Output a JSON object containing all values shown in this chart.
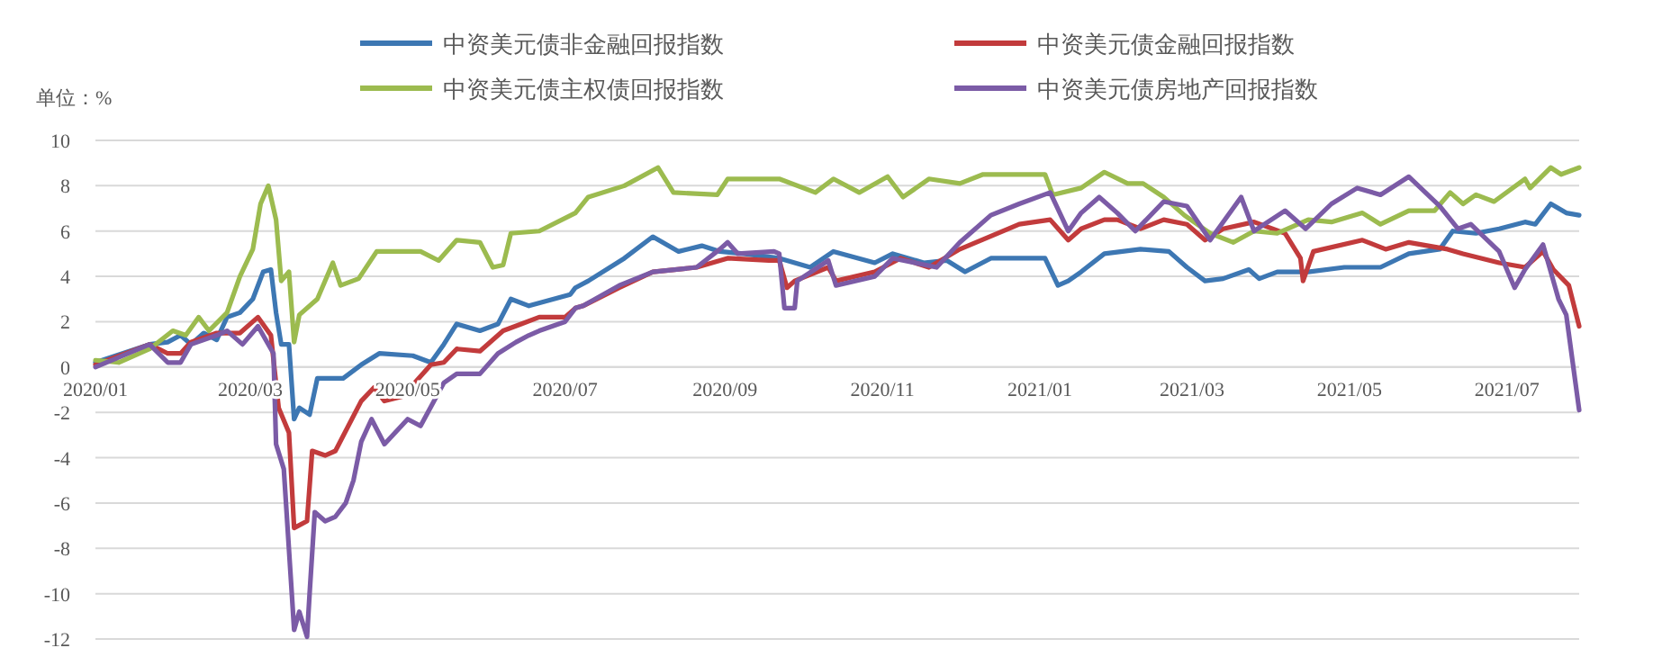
{
  "chart_data": {
    "type": "line",
    "ylabel": "单位：%",
    "legend": "top",
    "grid": "y",
    "xlim": [
      "2020-01-01",
      "2021-07-29"
    ],
    "xticks": [
      {
        "value": "2020-01-01",
        "label": "2020/01"
      },
      {
        "value": "2020-03-01",
        "label": "2020/03"
      },
      {
        "value": "2020-05-01",
        "label": "2020/05"
      },
      {
        "value": "2020-07-01",
        "label": "2020/07"
      },
      {
        "value": "2020-09-01",
        "label": "2020/09"
      },
      {
        "value": "2020-11-01",
        "label": "2020/11"
      },
      {
        "value": "2021-01-01",
        "label": "2021/01"
      },
      {
        "value": "2021-03-01",
        "label": "2021/03"
      },
      {
        "value": "2021-05-01",
        "label": "2021/05"
      },
      {
        "value": "2021-07-01",
        "label": "2021/07"
      }
    ],
    "ylim": [
      -12,
      10
    ],
    "yticks": [
      -12,
      -10,
      -8,
      -6,
      -4,
      -2,
      0,
      2,
      4,
      6,
      8,
      10
    ],
    "series": [
      {
        "name": "中资美元债非金融回报指数",
        "color": "#3d77b3",
        "x": [
          "2020-01-01",
          "2020-01-22",
          "2020-01-29",
          "2020-02-03",
          "2020-02-07",
          "2020-02-12",
          "2020-02-17",
          "2020-02-21",
          "2020-02-26",
          "2020-03-02",
          "2020-03-06",
          "2020-03-09",
          "2020-03-11",
          "2020-03-13",
          "2020-03-16",
          "2020-03-18",
          "2020-03-20",
          "2020-03-24",
          "2020-03-27",
          "2020-04-06",
          "2020-04-13",
          "2020-04-20",
          "2020-05-03",
          "2020-05-10",
          "2020-05-15",
          "2020-05-20",
          "2020-05-29",
          "2020-06-05",
          "2020-06-10",
          "2020-06-17",
          "2020-07-03",
          "2020-07-05",
          "2020-07-10",
          "2020-07-24",
          "2020-08-04",
          "2020-08-14",
          "2020-08-23",
          "2020-08-30",
          "2020-09-08",
          "2020-09-22",
          "2020-10-04",
          "2020-10-13",
          "2020-10-29",
          "2020-11-05",
          "2020-11-17",
          "2020-11-26",
          "2020-12-03",
          "2020-12-13",
          "2021-01-03",
          "2021-01-08",
          "2021-01-12",
          "2021-01-17",
          "2021-01-26",
          "2021-02-09",
          "2021-02-20",
          "2021-02-27",
          "2021-03-06",
          "2021-03-13",
          "2021-03-23",
          "2021-03-27",
          "2021-04-03",
          "2021-04-15",
          "2021-04-29",
          "2021-05-13",
          "2021-05-24",
          "2021-06-05",
          "2021-06-10",
          "2021-06-19",
          "2021-06-28",
          "2021-07-08",
          "2021-07-12",
          "2021-07-18",
          "2021-07-24",
          "2021-07-29"
        ],
        "values": [
          0.2,
          1.0,
          1.1,
          1.4,
          1.0,
          1.5,
          1.2,
          2.2,
          2.4,
          3.0,
          4.2,
          4.3,
          2.4,
          1.0,
          1.0,
          -2.3,
          -1.8,
          -2.1,
          -0.5,
          -0.5,
          0.1,
          0.6,
          0.5,
          0.2,
          1.0,
          1.9,
          1.6,
          1.9,
          3.0,
          2.7,
          3.2,
          3.5,
          3.8,
          4.8,
          5.75,
          5.1,
          5.35,
          5.1,
          5.0,
          4.8,
          4.4,
          5.1,
          4.6,
          5.0,
          4.6,
          4.7,
          4.2,
          4.8,
          4.8,
          3.6,
          3.8,
          4.2,
          5.0,
          5.2,
          5.1,
          4.4,
          3.8,
          3.9,
          4.3,
          3.9,
          4.2,
          4.2,
          4.4,
          4.4,
          5.0,
          5.2,
          6.0,
          5.9,
          6.1,
          6.4,
          6.3,
          7.2,
          6.8,
          6.7
        ]
      },
      {
        "name": "中资美元债金融回报指数",
        "color": "#c23b3c",
        "x": [
          "2020-01-01",
          "2020-01-22",
          "2020-01-29",
          "2020-02-03",
          "2020-02-07",
          "2020-02-17",
          "2020-02-26",
          "2020-03-04",
          "2020-03-09",
          "2020-03-12",
          "2020-03-16",
          "2020-03-18",
          "2020-03-23",
          "2020-03-25",
          "2020-03-30",
          "2020-04-03",
          "2020-04-08",
          "2020-04-13",
          "2020-04-18",
          "2020-04-22",
          "2020-04-29",
          "2020-05-10",
          "2020-05-15",
          "2020-05-20",
          "2020-05-29",
          "2020-06-07",
          "2020-06-14",
          "2020-06-21",
          "2020-07-01",
          "2020-07-05",
          "2020-07-08",
          "2020-07-22",
          "2020-08-04",
          "2020-08-21",
          "2020-09-02",
          "2020-09-18",
          "2020-09-22",
          "2020-09-25",
          "2020-09-28",
          "2020-10-11",
          "2020-10-14",
          "2020-10-29",
          "2020-11-08",
          "2020-11-19",
          "2020-12-01",
          "2020-12-24",
          "2021-01-05",
          "2021-01-12",
          "2021-01-17",
          "2021-01-26",
          "2021-01-31",
          "2021-02-09",
          "2021-02-18",
          "2021-02-27",
          "2021-03-06",
          "2021-03-13",
          "2021-03-25",
          "2021-04-06",
          "2021-04-12",
          "2021-04-13",
          "2021-04-17",
          "2021-05-06",
          "2021-05-15",
          "2021-05-24",
          "2021-06-08",
          "2021-06-14",
          "2021-06-28",
          "2021-07-08",
          "2021-07-15",
          "2021-07-19",
          "2021-07-25",
          "2021-07-29"
        ],
        "values": [
          0.1,
          1.0,
          0.6,
          0.6,
          1.1,
          1.5,
          1.5,
          2.2,
          1.4,
          -1.8,
          -2.9,
          -7.1,
          -6.8,
          -3.7,
          -3.9,
          -3.7,
          -2.6,
          -1.5,
          -0.9,
          -1.5,
          -1.3,
          0.1,
          0.2,
          0.8,
          0.7,
          1.6,
          1.9,
          2.2,
          2.2,
          2.6,
          2.7,
          3.5,
          4.2,
          4.4,
          4.8,
          4.7,
          4.7,
          3.5,
          3.8,
          4.4,
          3.8,
          4.2,
          4.8,
          4.4,
          5.2,
          6.3,
          6.5,
          5.6,
          6.1,
          6.5,
          6.5,
          6.1,
          6.5,
          6.3,
          5.6,
          6.1,
          6.4,
          5.9,
          4.8,
          3.8,
          5.1,
          5.6,
          5.2,
          5.5,
          5.2,
          5.0,
          4.6,
          4.4,
          5.1,
          4.3,
          3.6,
          1.8
        ]
      },
      {
        "name": "中资美元债主权债回报指数",
        "color": "#9cbb4f",
        "x": [
          "2020-01-01",
          "2020-01-10",
          "2020-01-22",
          "2020-01-31",
          "2020-02-05",
          "2020-02-10",
          "2020-02-14",
          "2020-02-21",
          "2020-02-26",
          "2020-03-02",
          "2020-03-05",
          "2020-03-08",
          "2020-03-11",
          "2020-03-13",
          "2020-03-16",
          "2020-03-18",
          "2020-03-20",
          "2020-03-27",
          "2020-04-02",
          "2020-04-05",
          "2020-04-12",
          "2020-04-19",
          "2020-05-06",
          "2020-05-13",
          "2020-05-20",
          "2020-05-29",
          "2020-06-03",
          "2020-06-07",
          "2020-06-10",
          "2020-06-21",
          "2020-07-05",
          "2020-07-10",
          "2020-07-24",
          "2020-08-06",
          "2020-08-12",
          "2020-08-29",
          "2020-09-02",
          "2020-09-22",
          "2020-10-06",
          "2020-10-13",
          "2020-10-23",
          "2020-11-03",
          "2020-11-09",
          "2020-11-19",
          "2020-12-01",
          "2020-12-10",
          "2021-01-03",
          "2021-01-06",
          "2021-01-17",
          "2021-01-26",
          "2021-02-04",
          "2021-02-10",
          "2021-02-18",
          "2021-02-26",
          "2021-03-08",
          "2021-03-17",
          "2021-03-25",
          "2021-04-03",
          "2021-04-15",
          "2021-04-24",
          "2021-05-06",
          "2021-05-13",
          "2021-05-24",
          "2021-06-03",
          "2021-06-09",
          "2021-06-14",
          "2021-06-19",
          "2021-06-26",
          "2021-07-08",
          "2021-07-10",
          "2021-07-18",
          "2021-07-22",
          "2021-07-29"
        ],
        "values": [
          0.3,
          0.2,
          0.8,
          1.6,
          1.4,
          2.2,
          1.6,
          2.4,
          4.0,
          5.2,
          7.2,
          8.0,
          6.5,
          3.8,
          4.2,
          1.1,
          2.3,
          3.0,
          4.6,
          3.6,
          3.9,
          5.1,
          5.1,
          4.7,
          5.6,
          5.5,
          4.4,
          4.5,
          5.9,
          6.0,
          6.8,
          7.5,
          8.0,
          8.8,
          7.7,
          7.6,
          8.3,
          8.3,
          7.7,
          8.3,
          7.7,
          8.4,
          7.5,
          8.3,
          8.1,
          8.5,
          8.5,
          7.6,
          7.9,
          8.6,
          8.1,
          8.1,
          7.5,
          6.7,
          5.9,
          5.5,
          6.0,
          5.9,
          6.5,
          6.4,
          6.8,
          6.3,
          6.9,
          6.9,
          7.7,
          7.2,
          7.6,
          7.3,
          8.3,
          7.9,
          8.8,
          8.5,
          8.8
        ]
      },
      {
        "name": "中资美元债房地产回报指数",
        "color": "#7b5ba6",
        "x": [
          "2020-01-01",
          "2020-01-22",
          "2020-01-29",
          "2020-02-03",
          "2020-02-07",
          "2020-02-17",
          "2020-02-21",
          "2020-02-27",
          "2020-03-04",
          "2020-03-10",
          "2020-03-11",
          "2020-03-14",
          "2020-03-18",
          "2020-03-20",
          "2020-03-23",
          "2020-03-24",
          "2020-03-26",
          "2020-03-30",
          "2020-04-03",
          "2020-04-07",
          "2020-04-10",
          "2020-04-13",
          "2020-04-17",
          "2020-04-22",
          "2020-05-01",
          "2020-05-06",
          "2020-05-15",
          "2020-05-20",
          "2020-05-29",
          "2020-06-05",
          "2020-06-12",
          "2020-06-17",
          "2020-06-21",
          "2020-07-01",
          "2020-07-05",
          "2020-07-08",
          "2020-07-22",
          "2020-08-04",
          "2020-08-21",
          "2020-08-30",
          "2020-09-02",
          "2020-09-06",
          "2020-09-20",
          "2020-09-22",
          "2020-09-24",
          "2020-09-28",
          "2020-09-29",
          "2020-10-11",
          "2020-10-14",
          "2020-10-29",
          "2020-11-05",
          "2020-11-22",
          "2020-12-01",
          "2020-12-13",
          "2020-12-24",
          "2021-01-05",
          "2021-01-12",
          "2021-01-17",
          "2021-01-24",
          "2021-01-31",
          "2021-02-07",
          "2021-02-18",
          "2021-02-27",
          "2021-03-08",
          "2021-03-20",
          "2021-03-25",
          "2021-04-06",
          "2021-04-14",
          "2021-04-24",
          "2021-05-04",
          "2021-05-13",
          "2021-05-24",
          "2021-06-05",
          "2021-06-12",
          "2021-06-17",
          "2021-06-28",
          "2021-07-04",
          "2021-07-08",
          "2021-07-15",
          "2021-07-21",
          "2021-07-24",
          "2021-07-29"
        ],
        "values": [
          0.0,
          1.0,
          0.2,
          0.2,
          1.0,
          1.4,
          1.6,
          1.0,
          1.8,
          0.6,
          -3.4,
          -4.5,
          -11.6,
          -10.8,
          -11.9,
          -10.0,
          -6.4,
          -6.8,
          -6.6,
          -6.0,
          -5.0,
          -3.3,
          -2.3,
          -3.4,
          -2.3,
          -2.6,
          -0.7,
          -0.3,
          -0.3,
          0.6,
          1.1,
          1.4,
          1.6,
          2.0,
          2.6,
          2.7,
          3.6,
          4.2,
          4.4,
          5.2,
          5.5,
          5.0,
          5.1,
          5.0,
          2.6,
          2.6,
          3.8,
          4.7,
          3.6,
          4.0,
          4.8,
          4.4,
          5.5,
          6.7,
          7.2,
          7.7,
          6.0,
          6.8,
          7.5,
          6.8,
          6.0,
          7.3,
          7.1,
          5.6,
          7.5,
          6.0,
          6.9,
          6.1,
          7.2,
          7.9,
          7.6,
          8.4,
          7.1,
          6.1,
          6.3,
          5.1,
          3.5,
          4.3,
          5.4,
          3.0,
          2.3,
          -1.9
        ]
      }
    ]
  }
}
